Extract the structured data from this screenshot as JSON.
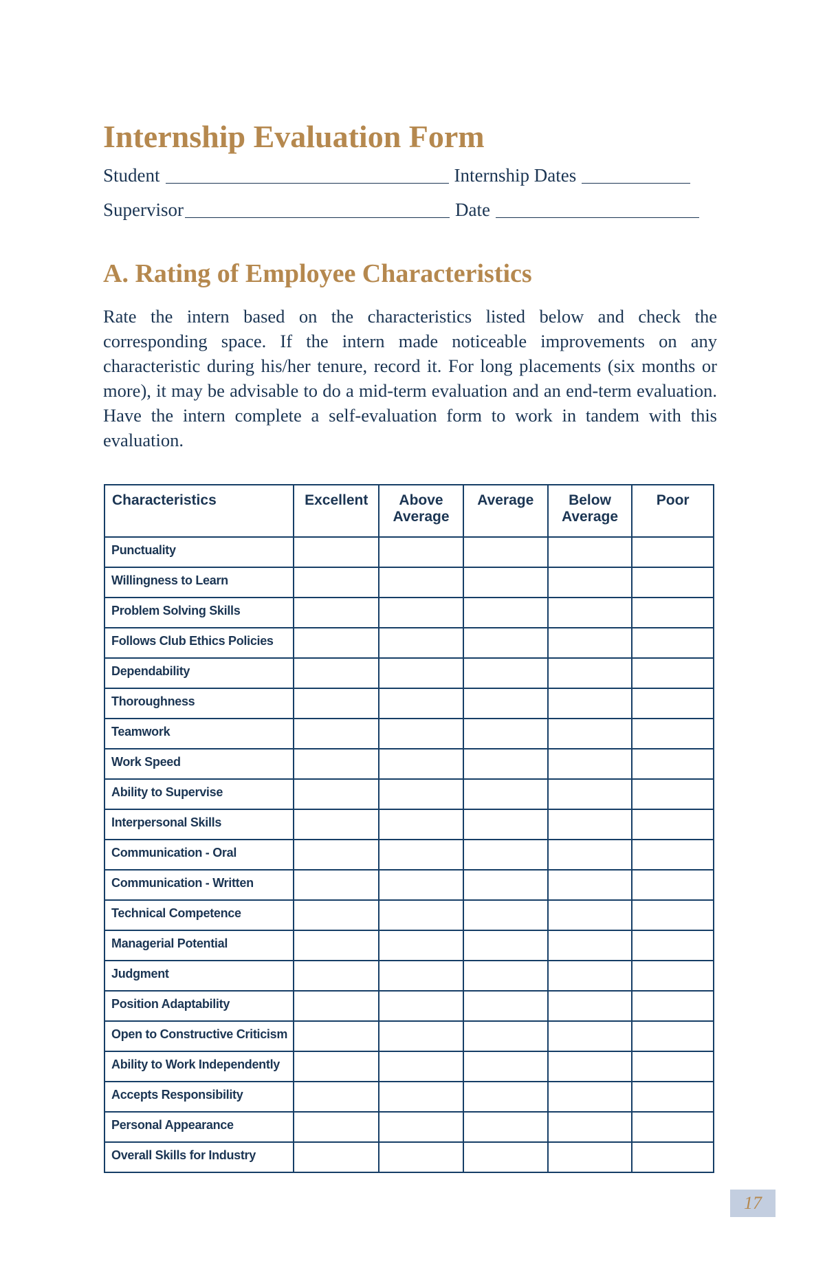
{
  "title": "Internship Evaluation Form",
  "fields": {
    "student": "Student",
    "internship_dates": "Internship Dates",
    "supervisor": "Supervisor",
    "date": "Date"
  },
  "section_a": {
    "heading": "A. Rating of Employee Characteristics",
    "instructions": "Rate the intern based on the characteristics listed below and check the corresponding space. If the intern made noticeable improvements on any characteristic during his/her tenure, record it. For long placements (six months or more), it may be advisable to do a mid-term evaluation and an end-term evaluation. Have the intern complete a self-evaluation form to work in tandem with this evaluation."
  },
  "table": {
    "headers": [
      "Characteristics",
      "Excellent",
      "Above Average",
      "Average",
      "Below Average",
      "Poor"
    ],
    "rows": [
      "Punctuality",
      "Willingness to Learn",
      "Problem Solving Skills",
      "Follows Club Ethics Policies",
      "Dependability",
      "Thoroughness",
      "Teamwork",
      "Work Speed",
      "Ability to Supervise",
      "Interpersonal Skills",
      "Communication - Oral",
      "Communication - Written",
      "Technical Competence",
      "Managerial Potential",
      "Judgment",
      "Position Adaptability",
      "Open to Constructive Criticism",
      "Ability to Work Independently",
      "Accepts Responsibility",
      "Personal Appearance",
      "Overall Skills for Industry"
    ]
  },
  "page_number": "17",
  "colors": {
    "heading": "#b5884e",
    "text": "#1b3553",
    "table_border": "#163e66",
    "page_box": "#c3cee0"
  }
}
